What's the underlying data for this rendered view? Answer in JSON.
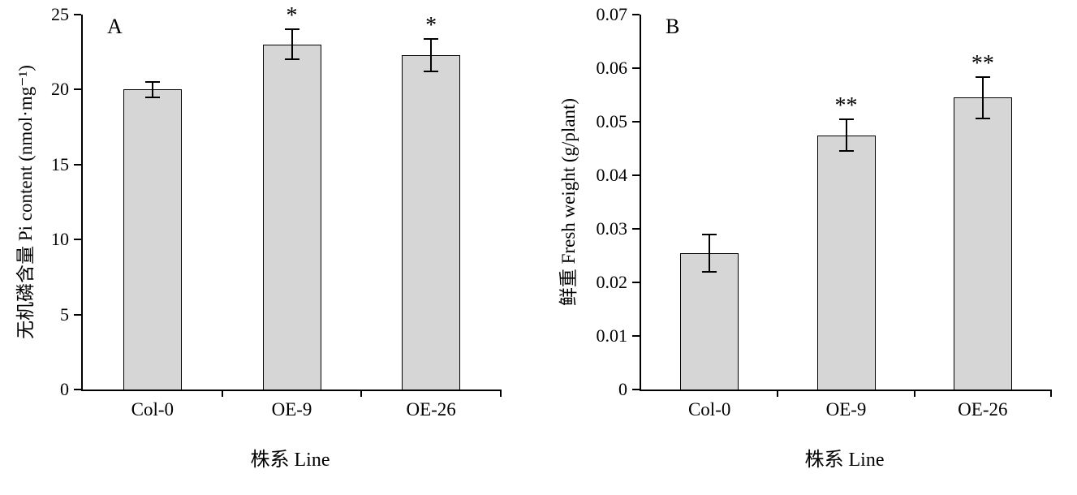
{
  "chart_data": [
    {
      "panel_label": "A",
      "type": "bar",
      "title": "",
      "xlabel": "株系 Line",
      "ylabel": "无机磷含量 Pi content (nmol·mg⁻¹)",
      "categories": [
        "Col-0",
        "OE-9",
        "OE-26"
      ],
      "values": [
        20.0,
        23.0,
        22.3
      ],
      "errors": [
        0.5,
        1.0,
        1.1
      ],
      "significance": [
        "",
        "*",
        "*"
      ],
      "ylim": [
        0,
        25
      ],
      "yticks": [
        0,
        5,
        10,
        15,
        20,
        25
      ],
      "ytick_labels": [
        "0",
        "5",
        "10",
        "15",
        "20",
        "25"
      ],
      "bar_color": "#d6d6d6",
      "grid": false,
      "legend": "none"
    },
    {
      "panel_label": "B",
      "type": "bar",
      "title": "",
      "xlabel": "株系 Line",
      "ylabel": "鲜重 Fresh weight (g/plant)",
      "categories": [
        "Col-0",
        "OE-9",
        "OE-26"
      ],
      "values": [
        0.0255,
        0.0475,
        0.0545
      ],
      "errors": [
        0.0035,
        0.0029,
        0.0039
      ],
      "significance": [
        "",
        "**",
        "**"
      ],
      "ylim": [
        0,
        0.07
      ],
      "yticks": [
        0,
        0.01,
        0.02,
        0.03,
        0.04,
        0.05,
        0.06,
        0.07
      ],
      "ytick_labels": [
        "0",
        "0.01",
        "0.02",
        "0.03",
        "0.04",
        "0.05",
        "0.06",
        "0.07"
      ],
      "bar_color": "#d6d6d6",
      "grid": false,
      "legend": "none"
    }
  ]
}
